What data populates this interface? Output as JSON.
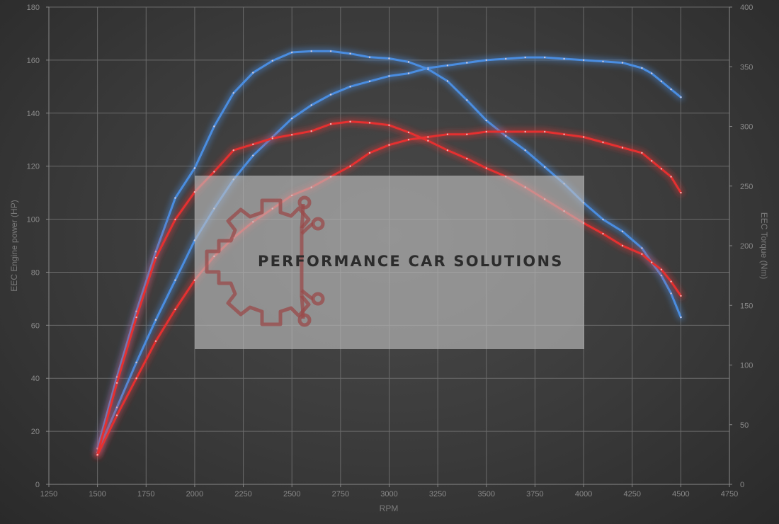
{
  "chart_data": {
    "type": "line",
    "xlabel": "RPM",
    "ylabel_left": "EEC Engine power (HP)",
    "ylabel_right": "EEC Torque (Nm)",
    "xlim": [
      1250,
      4750
    ],
    "ylim_left": [
      0,
      180
    ],
    "ylim_right": [
      0,
      400
    ],
    "x_ticks": [
      "1250",
      "1500",
      "1750",
      "2000",
      "2250",
      "2500",
      "2750",
      "3000",
      "3250",
      "3500",
      "3750",
      "4000",
      "4250",
      "4500",
      "4750"
    ],
    "y_left_ticks": [
      "0",
      "20",
      "40",
      "60",
      "80",
      "100",
      "120",
      "140",
      "160",
      "180"
    ],
    "y_right_ticks": [
      "0",
      "50",
      "100",
      "150",
      "200",
      "250",
      "300",
      "350",
      "400"
    ],
    "grid": true,
    "colors": {
      "tuned": "#4a8de0",
      "stock": "#e53030"
    },
    "series": [
      {
        "axis": "left",
        "color": "#4a8de0",
        "x": [
          1500,
          1600,
          1700,
          1800,
          1900,
          2000,
          2100,
          2200,
          2300,
          2400,
          2500,
          2600,
          2700,
          2800,
          2900,
          3000,
          3100,
          3200,
          3300,
          3400,
          3500,
          3600,
          3700,
          3800,
          3900,
          4000,
          4100,
          4200,
          4300,
          4350,
          4400,
          4450,
          4500
        ],
        "y": [
          12,
          29,
          46,
          62,
          77,
          92,
          104,
          115,
          124,
          131,
          138,
          143,
          147,
          150,
          152,
          154,
          155,
          157,
          158,
          159,
          160,
          160.5,
          161,
          161,
          160.5,
          160,
          159.5,
          159,
          157,
          155,
          152,
          149,
          146
        ]
      },
      {
        "axis": "right",
        "color": "#4a8de0",
        "x": [
          1500,
          1600,
          1700,
          1800,
          1900,
          2000,
          2100,
          2200,
          2300,
          2400,
          2500,
          2600,
          2700,
          2800,
          2900,
          3000,
          3100,
          3200,
          3300,
          3400,
          3500,
          3600,
          3700,
          3800,
          3900,
          4000,
          4100,
          4200,
          4300,
          4350,
          4400,
          4450,
          4500
        ],
        "y": [
          30,
          90,
          145,
          195,
          240,
          265,
          300,
          328,
          345,
          355,
          362,
          363,
          363,
          361,
          358,
          357,
          354,
          348,
          338,
          322,
          305,
          292,
          280,
          266,
          252,
          236,
          222,
          212,
          198,
          186,
          175,
          160,
          140
        ]
      },
      {
        "axis": "left",
        "color": "#e53030",
        "x": [
          1500,
          1600,
          1700,
          1800,
          1900,
          2000,
          2100,
          2200,
          2300,
          2400,
          2500,
          2600,
          2700,
          2800,
          2900,
          3000,
          3100,
          3200,
          3300,
          3400,
          3500,
          3600,
          3700,
          3800,
          3900,
          4000,
          4100,
          4200,
          4300,
          4350,
          4400,
          4450,
          4500
        ],
        "y": [
          11,
          26,
          40,
          54,
          66,
          77,
          86,
          93,
          99,
          104,
          109,
          112,
          116,
          120,
          125,
          128,
          130,
          131,
          132,
          132,
          133,
          133,
          133,
          133,
          132,
          131,
          129,
          127,
          125,
          122,
          119,
          116,
          110
        ]
      },
      {
        "axis": "right",
        "color": "#e53030",
        "x": [
          1500,
          1600,
          1700,
          1800,
          1900,
          2000,
          2100,
          2200,
          2300,
          2400,
          2500,
          2600,
          2700,
          2800,
          2900,
          3000,
          3100,
          3200,
          3300,
          3400,
          3500,
          3600,
          3700,
          3800,
          3900,
          4000,
          4100,
          4200,
          4300,
          4350,
          4400,
          4450,
          4500
        ],
        "y": [
          25,
          85,
          140,
          190,
          222,
          245,
          262,
          280,
          285,
          290,
          293,
          296,
          302,
          304,
          303,
          301,
          295,
          288,
          280,
          273,
          265,
          258,
          249,
          239,
          229,
          219,
          210,
          200,
          193,
          186,
          180,
          170,
          158
        ]
      }
    ]
  },
  "watermark": {
    "text": "PERFORMANCE CAR SOLUTIONS"
  }
}
